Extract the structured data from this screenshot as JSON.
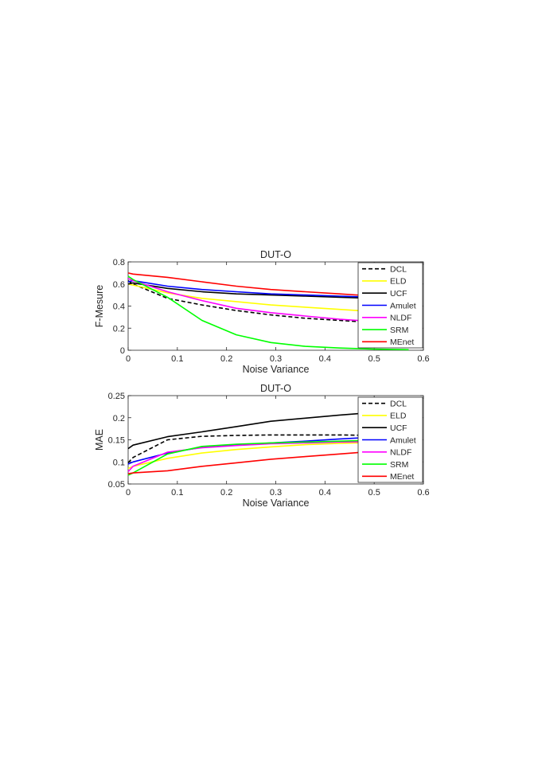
{
  "chart_data": [
    {
      "type": "line",
      "title": "DUT-O",
      "xlabel": "Noise Variance",
      "ylabel": "F-Mesure",
      "xlim": [
        0,
        0.6
      ],
      "ylim": [
        0,
        0.8
      ],
      "xticks": [
        "0",
        "0.1",
        "0.2",
        "0.3",
        "0.4",
        "0.5",
        "0.6"
      ],
      "yticks": [
        "0",
        "0.2",
        "0.4",
        "0.6",
        "0.8"
      ],
      "grid": false,
      "legend_position": "top-right",
      "series": [
        {
          "name": "DCL",
          "color": "#000000",
          "dash": true,
          "x": [
            0,
            0.01,
            0.08,
            0.15,
            0.22,
            0.29,
            0.36,
            0.43,
            0.5
          ],
          "y": [
            0.63,
            0.6,
            0.47,
            0.41,
            0.36,
            0.32,
            0.29,
            0.27,
            0.25
          ]
        },
        {
          "name": "ELD",
          "color": "#ffff00",
          "x": [
            0,
            0.01,
            0.08,
            0.15,
            0.22,
            0.29,
            0.36,
            0.43,
            0.5
          ],
          "y": [
            0.6,
            0.59,
            0.52,
            0.47,
            0.44,
            0.41,
            0.39,
            0.37,
            0.35
          ]
        },
        {
          "name": "UCF",
          "color": "#000000",
          "x": [
            0,
            0.01,
            0.08,
            0.15,
            0.22,
            0.29,
            0.36,
            0.43,
            0.5
          ],
          "y": [
            0.6,
            0.61,
            0.56,
            0.53,
            0.51,
            0.5,
            0.49,
            0.48,
            0.47
          ]
        },
        {
          "name": "Amulet",
          "color": "#0000ff",
          "x": [
            0,
            0.01,
            0.08,
            0.15,
            0.22,
            0.29,
            0.36,
            0.43,
            0.5
          ],
          "y": [
            0.62,
            0.63,
            0.58,
            0.55,
            0.53,
            0.51,
            0.5,
            0.49,
            0.48
          ]
        },
        {
          "name": "NLDF",
          "color": "#ff00ff",
          "x": [
            0,
            0.01,
            0.08,
            0.15,
            0.22,
            0.29,
            0.36,
            0.43,
            0.5
          ],
          "y": [
            0.65,
            0.63,
            0.53,
            0.45,
            0.38,
            0.34,
            0.31,
            0.28,
            0.26
          ]
        },
        {
          "name": "SRM",
          "color": "#00ff00",
          "x": [
            0,
            0.01,
            0.08,
            0.15,
            0.22,
            0.29,
            0.36,
            0.43,
            0.5,
            0.57
          ],
          "y": [
            0.67,
            0.64,
            0.48,
            0.27,
            0.14,
            0.07,
            0.035,
            0.02,
            0.01,
            0.005
          ]
        },
        {
          "name": "MEnet",
          "color": "#ff0000",
          "x": [
            0,
            0.01,
            0.08,
            0.15,
            0.22,
            0.29,
            0.36,
            0.43,
            0.5
          ],
          "y": [
            0.7,
            0.69,
            0.66,
            0.62,
            0.58,
            0.55,
            0.53,
            0.51,
            0.49
          ]
        }
      ]
    },
    {
      "type": "line",
      "title": "DUT-O",
      "xlabel": "Noise Variance",
      "ylabel": "MAE",
      "xlim": [
        0,
        0.6
      ],
      "ylim": [
        0.05,
        0.25
      ],
      "xticks": [
        "0",
        "0.1",
        "0.2",
        "0.3",
        "0.4",
        "0.5",
        "0.6"
      ],
      "yticks": [
        "0.05",
        "0.1",
        "0.15",
        "0.2",
        "0.25"
      ],
      "grid": false,
      "legend_position": "top-right",
      "series": [
        {
          "name": "DCL",
          "color": "#000000",
          "dash": true,
          "x": [
            0,
            0.01,
            0.08,
            0.15,
            0.22,
            0.29,
            0.36,
            0.43,
            0.5
          ],
          "y": [
            0.098,
            0.11,
            0.15,
            0.158,
            0.16,
            0.161,
            0.161,
            0.161,
            0.16
          ]
        },
        {
          "name": "ELD",
          "color": "#ffff00",
          "x": [
            0,
            0.01,
            0.08,
            0.15,
            0.22,
            0.29,
            0.36,
            0.43,
            0.5
          ],
          "y": [
            0.085,
            0.09,
            0.108,
            0.12,
            0.128,
            0.134,
            0.139,
            0.142,
            0.144
          ]
        },
        {
          "name": "UCF",
          "color": "#000000",
          "x": [
            0,
            0.01,
            0.08,
            0.15,
            0.22,
            0.29,
            0.36,
            0.43,
            0.5
          ],
          "y": [
            0.13,
            0.138,
            0.157,
            0.168,
            0.18,
            0.192,
            0.199,
            0.206,
            0.212
          ]
        },
        {
          "name": "Amulet",
          "color": "#0000ff",
          "x": [
            0,
            0.01,
            0.08,
            0.15,
            0.22,
            0.29,
            0.36,
            0.43,
            0.5
          ],
          "y": [
            0.095,
            0.1,
            0.12,
            0.133,
            0.138,
            0.143,
            0.147,
            0.152,
            0.156
          ]
        },
        {
          "name": "NLDF",
          "color": "#ff00ff",
          "x": [
            0,
            0.01,
            0.08,
            0.15,
            0.22,
            0.29,
            0.36,
            0.43,
            0.5
          ],
          "y": [
            0.078,
            0.09,
            0.122,
            0.132,
            0.137,
            0.141,
            0.143,
            0.145,
            0.146
          ]
        },
        {
          "name": "SRM",
          "color": "#00ff00",
          "x": [
            0,
            0.01,
            0.08,
            0.15,
            0.22,
            0.29,
            0.36,
            0.43,
            0.5
          ],
          "y": [
            0.07,
            0.075,
            0.118,
            0.135,
            0.14,
            0.143,
            0.145,
            0.147,
            0.149
          ]
        },
        {
          "name": "MEnet",
          "color": "#ff0000",
          "x": [
            0,
            0.01,
            0.08,
            0.15,
            0.22,
            0.29,
            0.36,
            0.43,
            0.5
          ],
          "y": [
            0.073,
            0.075,
            0.08,
            0.09,
            0.098,
            0.106,
            0.112,
            0.118,
            0.124
          ]
        }
      ]
    }
  ]
}
